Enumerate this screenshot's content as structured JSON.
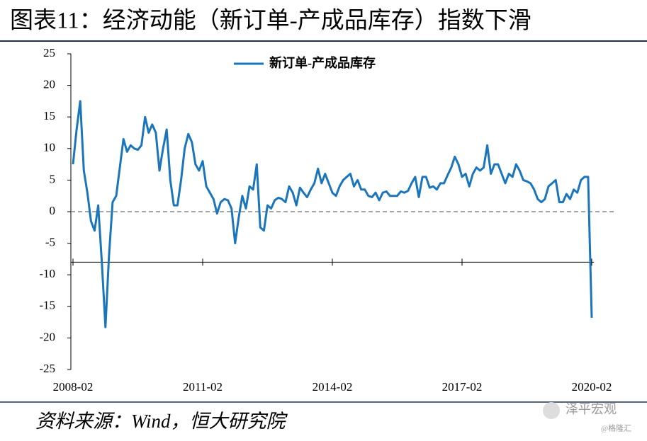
{
  "chart_data": {
    "type": "line",
    "title": "图表11：经济动能（新订单-产成品库存）指数下滑",
    "categories": [
      "2008-02",
      null,
      null,
      null,
      null,
      null,
      null,
      null,
      null,
      null,
      null,
      null,
      null,
      null,
      null,
      null,
      null,
      null,
      null,
      null,
      null,
      null,
      null,
      null,
      null,
      null,
      null,
      null,
      null,
      null,
      null,
      null,
      null,
      null,
      null,
      null,
      "2011-02",
      null,
      null,
      null,
      null,
      null,
      null,
      null,
      null,
      null,
      null,
      null,
      null,
      null,
      null,
      null,
      null,
      null,
      null,
      null,
      null,
      null,
      null,
      null,
      null,
      null,
      null,
      null,
      null,
      null,
      null,
      null,
      null,
      null,
      null,
      null,
      "2014-02",
      null,
      null,
      null,
      null,
      null,
      null,
      null,
      null,
      null,
      null,
      null,
      null,
      null,
      null,
      null,
      null,
      null,
      null,
      null,
      null,
      null,
      null,
      null,
      null,
      null,
      null,
      null,
      null,
      null,
      null,
      null,
      null,
      null,
      null,
      null,
      "2017-02",
      null,
      null,
      null,
      null,
      null,
      null,
      null,
      null,
      null,
      null,
      null,
      null,
      null,
      null,
      null,
      null,
      null,
      null,
      null,
      null,
      null,
      null,
      null,
      null,
      null,
      null,
      null,
      null,
      null,
      null,
      null,
      null,
      null,
      null,
      null,
      "2020-02"
    ],
    "series": [
      {
        "name": "新订单-产成品库存",
        "color": "#1a75bc",
        "values": [
          7.5,
          13,
          17.5,
          6.5,
          3,
          -1.5,
          -3,
          1,
          -8,
          -18.3,
          -7,
          1.5,
          2.5,
          7,
          11.5,
          9.5,
          10.5,
          10,
          9.8,
          10.5,
          15,
          12.5,
          13.8,
          12.5,
          6.5,
          10,
          13,
          5,
          1,
          1,
          5,
          10,
          12.3,
          11,
          7.5,
          6.5,
          8,
          4,
          3,
          2,
          -0.3,
          1.5,
          2,
          1.8,
          0.5,
          -5,
          -1,
          2.5,
          0.5,
          4,
          3.5,
          7.5,
          -2.5,
          -3,
          1,
          0.5,
          1.8,
          2.2,
          2,
          1.5,
          4,
          3,
          1,
          3.8,
          3,
          2.3,
          3.5,
          4.5,
          6.8,
          4.5,
          6,
          4.5,
          3,
          2.5,
          4,
          5,
          5.5,
          6,
          4,
          5,
          3.5,
          3.5,
          2.5,
          2.3,
          3,
          1.8,
          3,
          3.2,
          2.5,
          2.5,
          2.5,
          3.2,
          3,
          3.3,
          4.5,
          5.5,
          2.3,
          5.5,
          5.5,
          3.8,
          4,
          3.5,
          4.5,
          4.5,
          5.8,
          7,
          8.7,
          7.5,
          5.5,
          6,
          4,
          6,
          7,
          6.5,
          7,
          10.5,
          6,
          7.5,
          7.5,
          6,
          4.5,
          6,
          5.5,
          7.5,
          6.5,
          5,
          4.8,
          4.5,
          3.5,
          2,
          1.5,
          2,
          4,
          4.5,
          5,
          1.5,
          1.5,
          2.8,
          2,
          3.5,
          3,
          5,
          5.5,
          5.5,
          -16.8
        ]
      }
    ],
    "ylim": [
      -25,
      25
    ],
    "yticks": [
      -25,
      -20,
      -15,
      -10,
      -5,
      0,
      5,
      10,
      15,
      20,
      25
    ],
    "xaxis_crosses": -8,
    "zero_line": "dashed",
    "legend": "top"
  },
  "footer": {
    "source": "资料来源：Wind，恒大研究院",
    "watermark": "泽平宏观",
    "credit": "@格隆汇"
  }
}
